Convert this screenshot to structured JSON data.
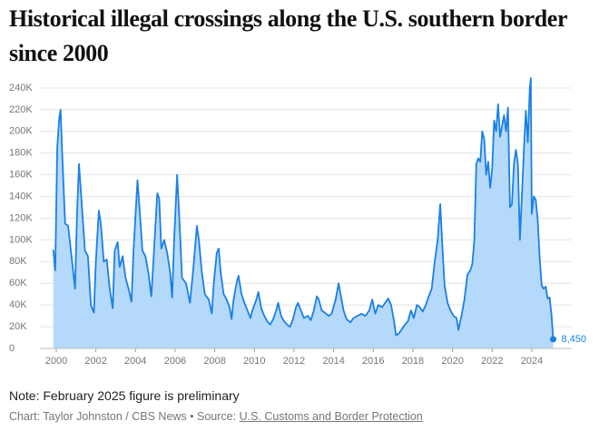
{
  "chart_data": {
    "type": "area",
    "title": "Historical illegal crossings along the U.S. southern border since 2000",
    "note": "Note: February 2025 figure is preliminary",
    "credit": "Chart: Taylor Johnston / CBS News • Source:",
    "source": "U.S. Customs and Border Protection",
    "annotation": "8,450",
    "x": [
      1999.85,
      1999.95,
      2000.05,
      2000.15,
      2000.22,
      2000.3,
      2000.45,
      2000.6,
      2000.8,
      2000.95,
      2001.05,
      2001.15,
      2001.3,
      2001.45,
      2001.6,
      2001.75,
      2001.9,
      2002.0,
      2002.15,
      2002.25,
      2002.4,
      2002.55,
      2002.7,
      2002.85,
      2002.95,
      2003.1,
      2003.2,
      2003.35,
      2003.5,
      2003.65,
      2003.8,
      2003.9,
      2004.1,
      2004.2,
      2004.35,
      2004.5,
      2004.65,
      2004.8,
      2004.95,
      2005.1,
      2005.2,
      2005.3,
      2005.45,
      2005.6,
      2005.75,
      2005.85,
      2005.95,
      2006.1,
      2006.2,
      2006.35,
      2006.55,
      2006.75,
      2006.9,
      2007.1,
      2007.2,
      2007.35,
      2007.5,
      2007.7,
      2007.85,
      2007.95,
      2008.1,
      2008.2,
      2008.3,
      2008.45,
      2008.6,
      2008.75,
      2008.85,
      2008.95,
      2009.1,
      2009.2,
      2009.35,
      2009.5,
      2009.65,
      2009.8,
      2009.9,
      2010.1,
      2010.2,
      2010.35,
      2010.5,
      2010.65,
      2010.8,
      2010.95,
      2011.1,
      2011.2,
      2011.35,
      2011.5,
      2011.65,
      2011.8,
      2011.95,
      2012.1,
      2012.2,
      2012.35,
      2012.5,
      2012.7,
      2012.85,
      2013.0,
      2013.15,
      2013.25,
      2013.4,
      2013.55,
      2013.75,
      2013.9,
      2014.1,
      2014.25,
      2014.35,
      2014.5,
      2014.65,
      2014.85,
      2015.0,
      2015.2,
      2015.4,
      2015.6,
      2015.8,
      2015.95,
      2016.1,
      2016.25,
      2016.45,
      2016.6,
      2016.75,
      2016.9,
      2017.05,
      2017.15,
      2017.3,
      2017.45,
      2017.6,
      2017.75,
      2017.9,
      2018.05,
      2018.2,
      2018.35,
      2018.5,
      2018.65,
      2018.8,
      2018.95,
      2019.1,
      2019.25,
      2019.38,
      2019.5,
      2019.6,
      2019.75,
      2019.9,
      2020.05,
      2020.2,
      2020.3,
      2020.45,
      2020.6,
      2020.75,
      2020.9,
      2021.0,
      2021.1,
      2021.2,
      2021.3,
      2021.4,
      2021.5,
      2021.6,
      2021.7,
      2021.8,
      2021.9,
      2022.0,
      2022.1,
      2022.2,
      2022.3,
      2022.4,
      2022.5,
      2022.6,
      2022.7,
      2022.8,
      2022.9,
      2023.0,
      2023.1,
      2023.2,
      2023.3,
      2023.4,
      2023.5,
      2023.6,
      2023.7,
      2023.8,
      2023.9,
      2023.95,
      2024.0,
      2024.1,
      2024.2,
      2024.3,
      2024.4,
      2024.5,
      2024.6,
      2024.7,
      2024.8,
      2024.9,
      2025.0,
      2025.08
    ],
    "series": [
      {
        "color": "#1a80e5",
        "fill": "#b5d9fb",
        "values": [
          91000,
          72000,
          185000,
          212000,
          220000,
          180000,
          115000,
          113000,
          80000,
          55000,
          125000,
          170000,
          130000,
          90000,
          85000,
          40000,
          33000,
          80000,
          127000,
          115000,
          80000,
          82000,
          55000,
          37000,
          90000,
          98000,
          75000,
          85000,
          65000,
          55000,
          43000,
          90000,
          155000,
          130000,
          90000,
          85000,
          70000,
          48000,
          95000,
          143000,
          138000,
          92000,
          100000,
          88000,
          70000,
          47000,
          100000,
          160000,
          125000,
          65000,
          60000,
          42000,
          70000,
          113000,
          100000,
          70000,
          50000,
          45000,
          32000,
          60000,
          88000,
          92000,
          70000,
          50000,
          45000,
          38000,
          27000,
          45000,
          60000,
          67000,
          50000,
          42000,
          35000,
          28000,
          35000,
          45000,
          52000,
          37000,
          30000,
          25000,
          22000,
          27000,
          35000,
          42000,
          30000,
          25000,
          22000,
          20000,
          27000,
          38000,
          42000,
          35000,
          28000,
          30000,
          26000,
          35000,
          48000,
          45000,
          35000,
          33000,
          30000,
          32000,
          45000,
          60000,
          50000,
          35000,
          27000,
          24000,
          28000,
          30000,
          32000,
          30000,
          35000,
          45000,
          32000,
          40000,
          38000,
          42000,
          46000,
          40000,
          25000,
          12000,
          14000,
          18000,
          22000,
          25000,
          35000,
          28000,
          40000,
          38000,
          34000,
          40000,
          48000,
          55000,
          80000,
          100000,
          133000,
          90000,
          58000,
          42000,
          35000,
          30000,
          28000,
          17000,
          30000,
          45000,
          68000,
          72000,
          78000,
          100000,
          170000,
          175000,
          172000,
          200000,
          193000,
          160000,
          172000,
          148000,
          165000,
          210000,
          200000,
          225000,
          195000,
          205000,
          215000,
          200000,
          222000,
          130000,
          133000,
          170000,
          183000,
          170000,
          100000,
          140000,
          182000,
          219000,
          190000,
          240000,
          249000,
          124000,
          140000,
          137000,
          118000,
          83000,
          58000,
          55000,
          57000,
          46000,
          47000,
          30000,
          8450
        ]
      }
    ],
    "xlim": [
      1999.2,
      2026
    ],
    "xticks": [
      2000,
      2002,
      2004,
      2006,
      2008,
      2010,
      2012,
      2014,
      2016,
      2018,
      2020,
      2022,
      2024
    ],
    "ylim": [
      0,
      250000
    ],
    "yticks": [
      0,
      {
        "value": 20000,
        "label": "20K"
      },
      {
        "value": 40000,
        "label": "40K"
      },
      {
        "value": 60000,
        "label": "60K"
      },
      {
        "value": 80000,
        "label": "80K"
      },
      {
        "value": 100000,
        "label": "100K"
      },
      {
        "value": 120000,
        "label": "120K"
      },
      {
        "value": 140000,
        "label": "140K"
      },
      {
        "value": 160000,
        "label": "160K"
      },
      {
        "value": 180000,
        "label": "180K"
      },
      {
        "value": 200000,
        "label": "200K"
      },
      {
        "value": 220000,
        "label": "220K"
      },
      {
        "value": 240000,
        "label": "240K"
      }
    ],
    "grid": true
  }
}
